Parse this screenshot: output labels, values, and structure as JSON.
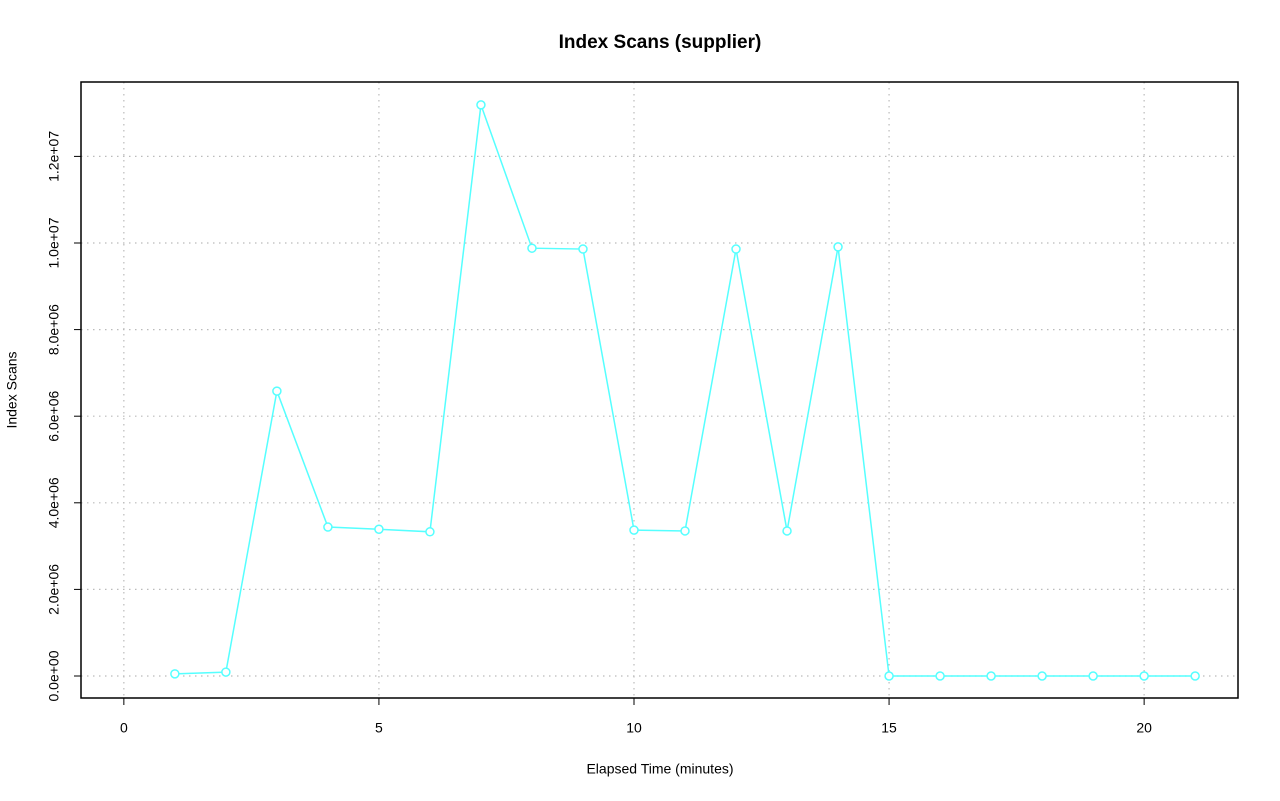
{
  "chart_data": {
    "type": "line",
    "title": "Index Scans (supplier)",
    "x_label": "Elapsed Time (minutes)",
    "y_label": "Index Scans",
    "x": [
      1,
      2,
      3,
      4,
      5,
      6,
      7,
      8,
      9,
      10,
      11,
      12,
      13,
      14,
      15,
      16,
      17,
      18,
      19,
      20,
      21
    ],
    "series": [
      {
        "color": "#55ffff",
        "values": [
          50000,
          90000,
          6580000,
          3440000,
          3390000,
          3330000,
          13190000,
          9880000,
          9860000,
          3370000,
          3350000,
          9860000,
          3350000,
          9910000,
          0,
          0,
          0,
          0,
          0,
          0,
          0
        ]
      }
    ],
    "xlim": [
      -0.84,
      21.84
    ],
    "ylim": [
      -508000,
      13718000
    ],
    "xticks": [
      0,
      5,
      10,
      15,
      20
    ],
    "yticks": [
      {
        "value": 0,
        "label": "0.0e+00"
      },
      {
        "value": 2000000,
        "label": "2.0e+06"
      },
      {
        "value": 4000000,
        "label": "4.0e+06"
      },
      {
        "value": 6000000,
        "label": "6.0e+06"
      },
      {
        "value": 8000000,
        "label": "8.0e+06"
      },
      {
        "value": 10000000,
        "label": "1.0e+07"
      },
      {
        "value": 12000000,
        "label": "1.2e+07"
      }
    ],
    "grid": true
  }
}
